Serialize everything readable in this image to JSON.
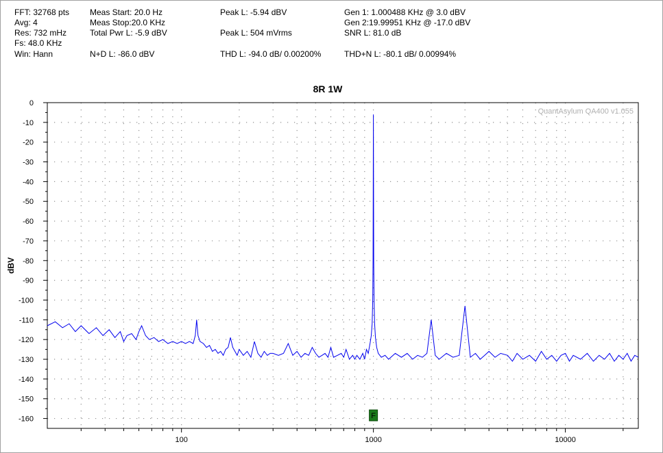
{
  "readouts": {
    "fft": "FFT: 32768 pts",
    "avg": "Avg: 4",
    "res": "Res: 732 mHz",
    "fs": "Fs: 48.0 KHz",
    "win": "Win: Hann",
    "meas_start": "Meas Start: 20.0 Hz",
    "meas_stop": "Meas Stop:20.0 KHz",
    "total_pwr": "Total Pwr L: -5.9 dBV",
    "nd": "N+D L: -86.0 dBV",
    "peak_dbv": "Peak L: -5.94 dBV",
    "peak_vrms": "Peak L: 504 mVrms",
    "thd": "THD L: -94.0 dB/ 0.00200%",
    "gen1": "Gen 1: 1.000488 KHz @ 3.0  dBV",
    "gen2": "Gen 2:19.99951 KHz @ -17.0  dBV",
    "snr": "SNR L: 81.0 dB",
    "thdn": "THD+N L: -80.1 dB/ 0.00994%"
  },
  "chart_data": {
    "type": "line",
    "title": "8R 1W",
    "ylabel": "dBV",
    "watermark": "QuantAsylum QA400 v1.055",
    "x_scale": "log",
    "xlim": [
      20,
      24000
    ],
    "ylim": [
      -165,
      0
    ],
    "y_ticks": [
      0,
      -10,
      -20,
      -30,
      -40,
      -50,
      -60,
      -70,
      -80,
      -90,
      -100,
      -110,
      -120,
      -130,
      -140,
      -150,
      -160
    ],
    "y_tick_labels": [
      "0",
      "-10",
      "-20",
      "-30",
      "-40",
      "-50",
      "-60",
      "-70",
      "-80",
      "-90",
      "-100",
      "-110",
      "-120",
      "-130",
      "-140",
      "-150",
      "-160"
    ],
    "x_ticks": [
      100,
      1000,
      10000
    ],
    "x_tick_labels": [
      "100",
      "1000",
      "10000"
    ],
    "grid": true,
    "line_color": "#0000ee",
    "marker": {
      "label": "F",
      "x": 1000,
      "color": "#1a7a1a"
    },
    "series": [
      {
        "values": [
          [
            20,
            -113
          ],
          [
            22,
            -111
          ],
          [
            24,
            -114
          ],
          [
            26,
            -112
          ],
          [
            28,
            -116
          ],
          [
            30,
            -113
          ],
          [
            33,
            -117
          ],
          [
            36,
            -114
          ],
          [
            39,
            -118
          ],
          [
            42,
            -115
          ],
          [
            45,
            -119
          ],
          [
            48,
            -116
          ],
          [
            50,
            -121
          ],
          [
            52,
            -118
          ],
          [
            55,
            -117
          ],
          [
            58,
            -120
          ],
          [
            60,
            -116
          ],
          [
            62,
            -113
          ],
          [
            65,
            -118
          ],
          [
            68,
            -120
          ],
          [
            72,
            -119
          ],
          [
            76,
            -121
          ],
          [
            80,
            -120
          ],
          [
            85,
            -122
          ],
          [
            90,
            -121
          ],
          [
            95,
            -122
          ],
          [
            100,
            -121
          ],
          [
            105,
            -122
          ],
          [
            110,
            -121
          ],
          [
            115,
            -122
          ],
          [
            118,
            -118
          ],
          [
            120,
            -110
          ],
          [
            122,
            -118
          ],
          [
            125,
            -121
          ],
          [
            130,
            -122
          ],
          [
            135,
            -124
          ],
          [
            140,
            -123
          ],
          [
            145,
            -126
          ],
          [
            150,
            -125
          ],
          [
            155,
            -127
          ],
          [
            160,
            -126
          ],
          [
            165,
            -128
          ],
          [
            170,
            -125
          ],
          [
            175,
            -124
          ],
          [
            180,
            -119
          ],
          [
            185,
            -124
          ],
          [
            190,
            -126
          ],
          [
            195,
            -128
          ],
          [
            200,
            -125
          ],
          [
            210,
            -128
          ],
          [
            220,
            -126
          ],
          [
            230,
            -129
          ],
          [
            240,
            -121
          ],
          [
            250,
            -127
          ],
          [
            260,
            -129
          ],
          [
            270,
            -126
          ],
          [
            280,
            -128
          ],
          [
            290,
            -127
          ],
          [
            300,
            -127
          ],
          [
            320,
            -128
          ],
          [
            340,
            -127
          ],
          [
            360,
            -122
          ],
          [
            380,
            -128
          ],
          [
            400,
            -126
          ],
          [
            420,
            -129
          ],
          [
            440,
            -127
          ],
          [
            460,
            -128
          ],
          [
            480,
            -124
          ],
          [
            500,
            -127
          ],
          [
            520,
            -129
          ],
          [
            540,
            -128
          ],
          [
            560,
            -127
          ],
          [
            580,
            -129
          ],
          [
            600,
            -124
          ],
          [
            620,
            -129
          ],
          [
            650,
            -128
          ],
          [
            680,
            -127
          ],
          [
            700,
            -129
          ],
          [
            720,
            -125
          ],
          [
            750,
            -130
          ],
          [
            780,
            -128
          ],
          [
            800,
            -130
          ],
          [
            820,
            -128
          ],
          [
            850,
            -130
          ],
          [
            880,
            -127
          ],
          [
            900,
            -130
          ],
          [
            920,
            -125
          ],
          [
            940,
            -127
          ],
          [
            960,
            -122
          ],
          [
            975,
            -118
          ],
          [
            985,
            -112
          ],
          [
            992,
            -100
          ],
          [
            996,
            -80
          ],
          [
            1000,
            -6
          ],
          [
            1004,
            -80
          ],
          [
            1008,
            -100
          ],
          [
            1015,
            -112
          ],
          [
            1025,
            -119
          ],
          [
            1040,
            -124
          ],
          [
            1060,
            -127
          ],
          [
            1100,
            -129
          ],
          [
            1150,
            -128
          ],
          [
            1200,
            -130
          ],
          [
            1300,
            -127
          ],
          [
            1400,
            -129
          ],
          [
            1500,
            -127
          ],
          [
            1600,
            -130
          ],
          [
            1700,
            -128
          ],
          [
            1800,
            -129
          ],
          [
            1900,
            -127
          ],
          [
            2000,
            -110
          ],
          [
            2100,
            -128
          ],
          [
            2200,
            -130
          ],
          [
            2400,
            -127
          ],
          [
            2600,
            -129
          ],
          [
            2800,
            -128
          ],
          [
            3000,
            -103
          ],
          [
            3200,
            -129
          ],
          [
            3400,
            -127
          ],
          [
            3600,
            -130
          ],
          [
            3800,
            -128
          ],
          [
            4000,
            -126
          ],
          [
            4300,
            -129
          ],
          [
            4600,
            -127
          ],
          [
            5000,
            -128
          ],
          [
            5300,
            -131
          ],
          [
            5600,
            -127
          ],
          [
            6000,
            -130
          ],
          [
            6500,
            -128
          ],
          [
            7000,
            -131
          ],
          [
            7500,
            -126
          ],
          [
            8000,
            -130
          ],
          [
            8500,
            -128
          ],
          [
            9000,
            -131
          ],
          [
            9500,
            -128
          ],
          [
            10000,
            -127
          ],
          [
            10500,
            -131
          ],
          [
            11000,
            -128
          ],
          [
            12000,
            -130
          ],
          [
            13000,
            -127
          ],
          [
            14000,
            -131
          ],
          [
            15000,
            -128
          ],
          [
            16000,
            -130
          ],
          [
            17000,
            -127
          ],
          [
            18000,
            -131
          ],
          [
            19000,
            -128
          ],
          [
            20000,
            -130
          ],
          [
            21000,
            -127
          ],
          [
            22000,
            -131
          ],
          [
            23000,
            -128
          ],
          [
            24000,
            -129
          ]
        ]
      }
    ]
  }
}
